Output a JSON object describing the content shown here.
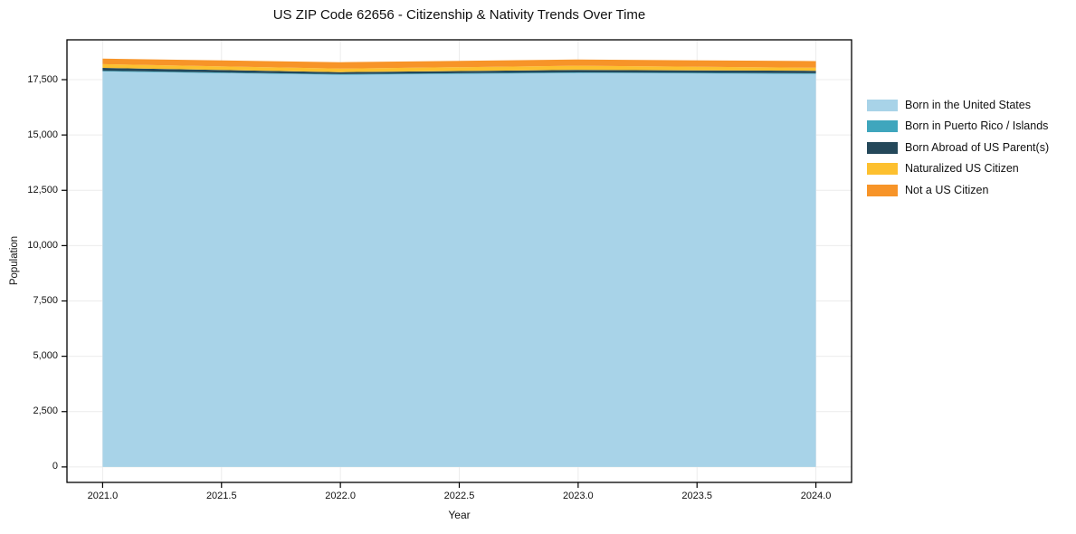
{
  "title": "US ZIP Code 62656 - Citizenship & Nativity Trends Over Time",
  "chart_data": {
    "type": "area",
    "stacked": true,
    "title": "US ZIP Code 62656 - Citizenship & Nativity Trends Over Time",
    "xlabel": "Year",
    "ylabel": "Population",
    "x": [
      2021,
      2022,
      2023,
      2024
    ],
    "series": [
      {
        "name": "Born in the United States",
        "color": "#a8d3e8",
        "values": [
          17870,
          17720,
          17800,
          17760
        ]
      },
      {
        "name": "Born in Puerto Rico / Islands",
        "color": "#3fa6bd",
        "values": [
          30,
          30,
          30,
          30
        ]
      },
      {
        "name": "Born Abroad of US Parent(s)",
        "color": "#24485a",
        "values": [
          130,
          90,
          110,
          110
        ]
      },
      {
        "name": "Naturalized US Citizen",
        "color": "#fdc02f",
        "values": [
          170,
          160,
          190,
          140
        ]
      },
      {
        "name": "Not a US Citizen",
        "color": "#f79428",
        "values": [
          250,
          290,
          280,
          300
        ]
      }
    ],
    "xlim": [
      2020.85,
      2024.15
    ],
    "ylim": [
      -700,
      19300
    ],
    "x_ticks": [
      "2021.0",
      "2021.5",
      "2022.0",
      "2022.5",
      "2023.0",
      "2023.5",
      "2024.0"
    ],
    "x_tick_values": [
      2021,
      2021.5,
      2022,
      2022.5,
      2023,
      2023.5,
      2024
    ],
    "y_ticks": [
      "0",
      "2,500",
      "5,000",
      "7,500",
      "10,000",
      "12,500",
      "15,000",
      "17,500"
    ],
    "y_tick_values": [
      0,
      2500,
      5000,
      7500,
      10000,
      12500,
      15000,
      17500
    ],
    "grid": true,
    "grid_color": "#ececec",
    "spine_color": "#000000",
    "legend_position": "right"
  }
}
